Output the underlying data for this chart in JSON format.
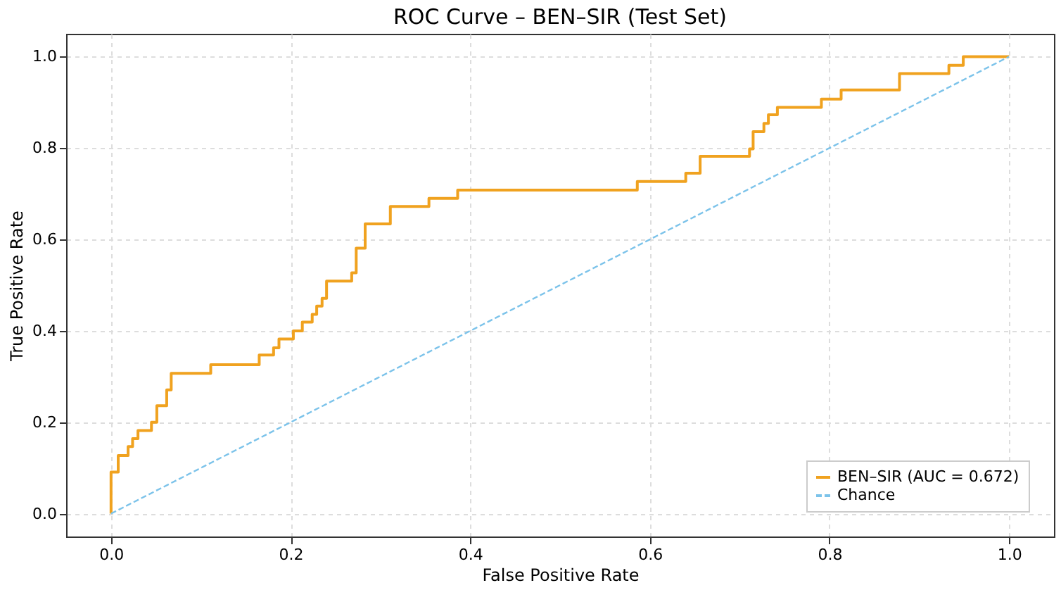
{
  "chart_data": {
    "type": "step",
    "title": "ROC Curve – BEN–SIR (Test Set)",
    "xlabel": "False Positive Rate",
    "ylabel": "True Positive Rate",
    "series": [
      {
        "name": "BEN–SIR (AUC = 0.672)",
        "color": "#f0a21f",
        "line_style": "solid",
        "x": [
          0,
          0,
          0.008,
          0.019,
          0.024,
          0.03,
          0.045,
          0.051,
          0.062,
          0.067,
          0.111,
          0.165,
          0.181,
          0.187,
          0.203,
          0.213,
          0.224,
          0.229,
          0.235,
          0.24,
          0.268,
          0.273,
          0.283,
          0.311,
          0.354,
          0.386,
          0.586,
          0.64,
          0.656,
          0.711,
          0.715,
          0.727,
          0.732,
          0.742,
          0.791,
          0.813,
          0.878,
          0.933,
          0.949,
          1.0
        ],
        "values": [
          0,
          0.091,
          0.127,
          0.147,
          0.164,
          0.182,
          0.2,
          0.236,
          0.271,
          0.307,
          0.326,
          0.347,
          0.363,
          0.382,
          0.4,
          0.419,
          0.436,
          0.454,
          0.471,
          0.509,
          0.527,
          0.581,
          0.634,
          0.672,
          0.69,
          0.708,
          0.727,
          0.745,
          0.782,
          0.798,
          0.836,
          0.854,
          0.873,
          0.889,
          0.907,
          0.927,
          0.963,
          0.981,
          1.0,
          1.0
        ]
      },
      {
        "name": "Chance",
        "color": "#7cc3ea",
        "type": "line",
        "line_style": "dashed",
        "x": [
          0,
          1
        ],
        "values": [
          0,
          1
        ]
      }
    ],
    "xlim": [
      -0.05,
      1.05
    ],
    "ylim": [
      -0.05,
      1.05
    ],
    "xticks": [
      {
        "value": 0,
        "label": "0.0"
      },
      0.2,
      0.4,
      0.6,
      0.8,
      {
        "value": 1,
        "label": "1.0"
      }
    ],
    "yticks": [
      {
        "value": 0,
        "label": "0.0"
      },
      0.2,
      0.4,
      0.6,
      0.8,
      {
        "value": 1,
        "label": "1.0"
      }
    ],
    "grid": true,
    "legend": "bottom right"
  }
}
